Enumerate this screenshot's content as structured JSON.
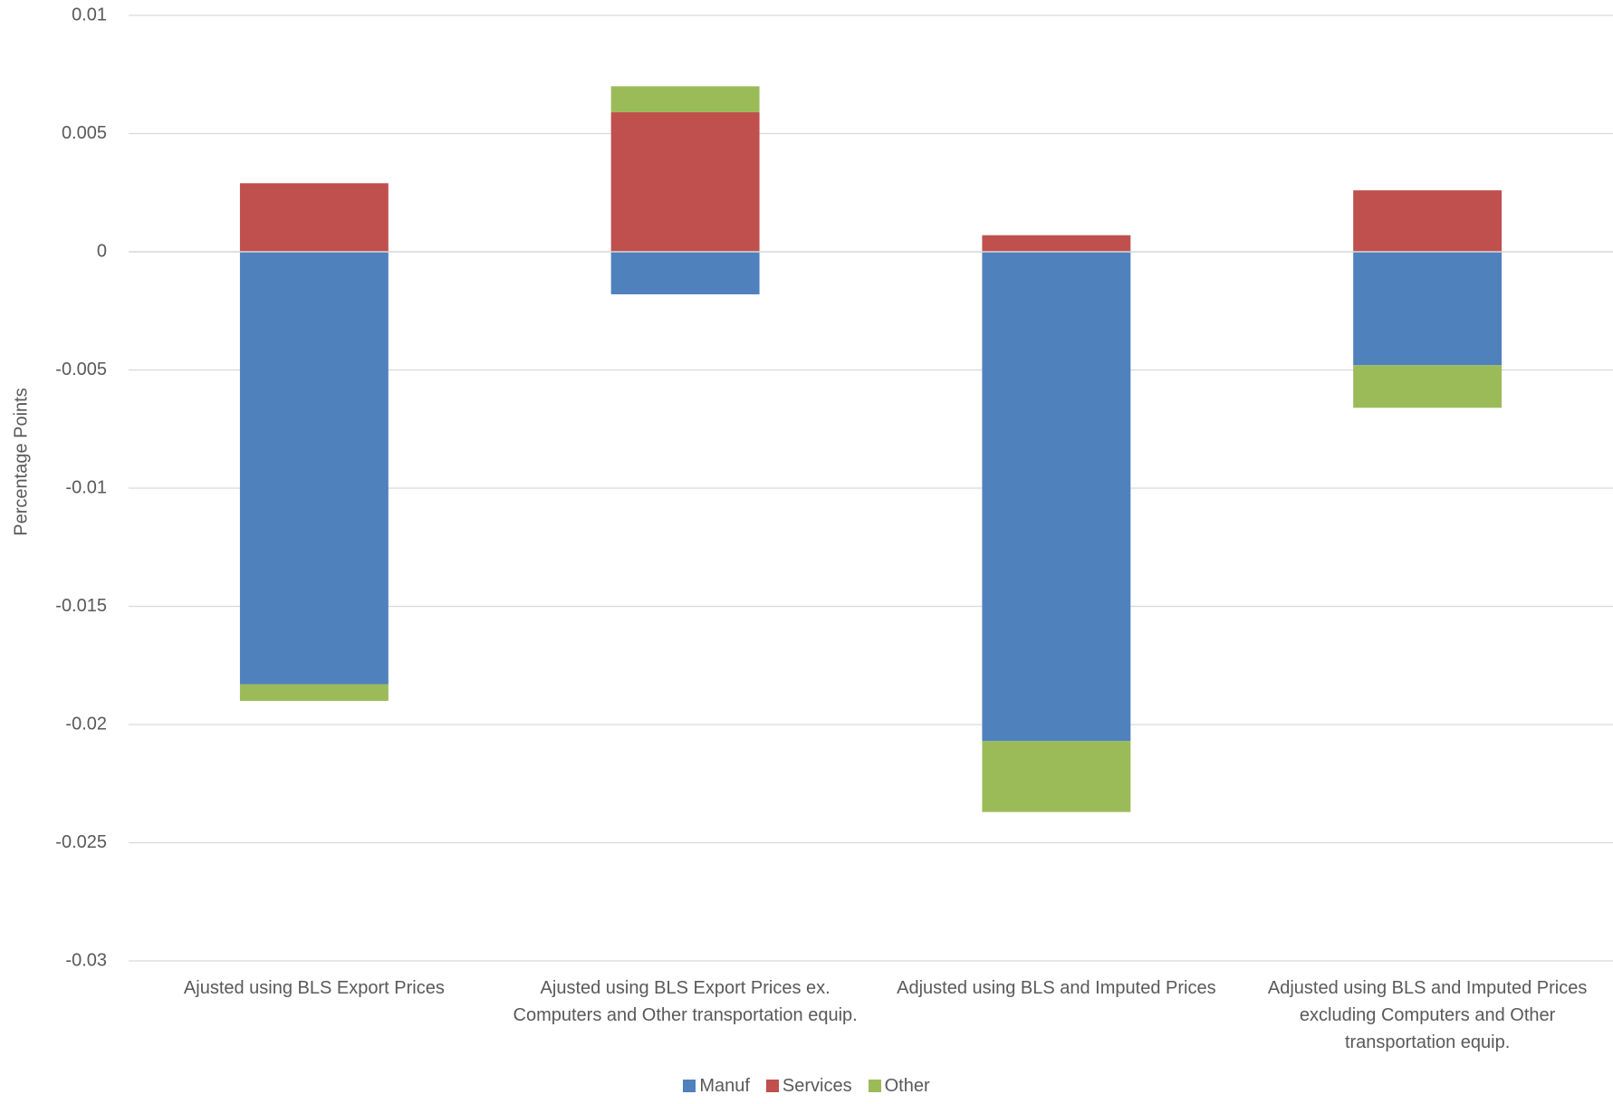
{
  "chart_data": {
    "type": "stacked_bar",
    "y_label": "Percentage Points",
    "categories": [
      "Ajusted using BLS Export Prices",
      "Ajusted using BLS Export Prices ex. Computers and Other transportation equip.",
      "Adjusted using BLS and Imputed Prices",
      "Adjusted using BLS and Imputed Prices excluding Computers and Other transportation equip."
    ],
    "series": [
      {
        "name": "Manuf",
        "color": "#4f81bd",
        "values": [
          -0.0183,
          -0.0018,
          -0.0207,
          -0.0048
        ]
      },
      {
        "name": "Services",
        "color": "#c0504d",
        "values": [
          0.0029,
          0.0059,
          0.0007,
          0.0026
        ]
      },
      {
        "name": "Other",
        "color": "#9bbb59",
        "values": [
          -0.0007,
          0.0011,
          -0.003,
          -0.0018
        ]
      }
    ],
    "ylim": [
      -0.03,
      0.01
    ],
    "yticks": [
      0.01,
      0.005,
      0,
      -0.005,
      -0.01,
      -0.015,
      -0.02,
      -0.025,
      -0.03
    ],
    "grid": true,
    "legend": "bottom"
  }
}
